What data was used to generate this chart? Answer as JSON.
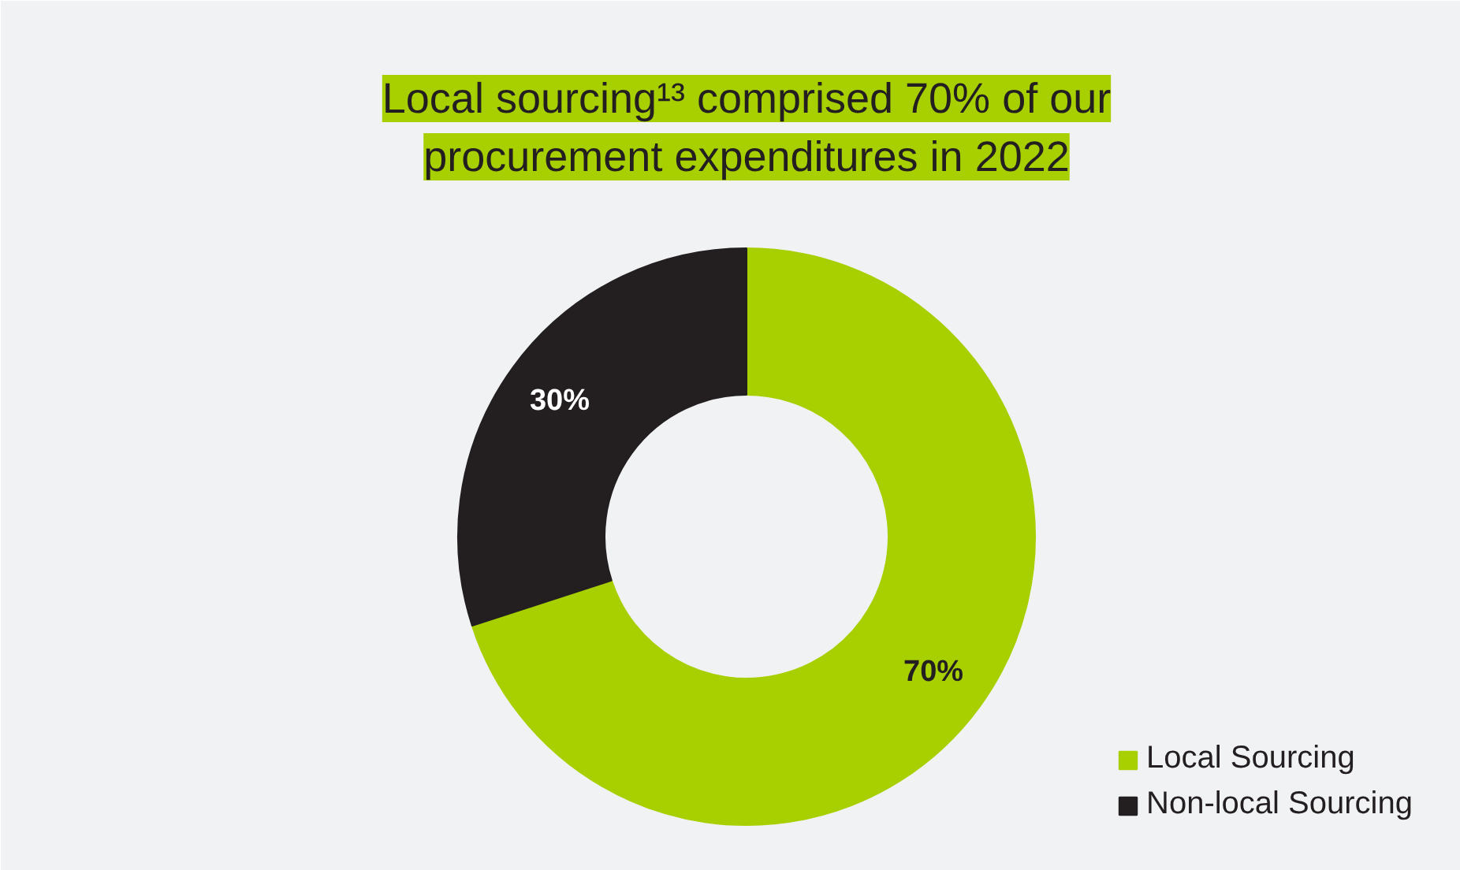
{
  "chart_data": {
    "type": "donut",
    "title": "Local sourcing¹³ comprised 70% of our procurement expenditures in 2022",
    "categories": [
      "Local Sourcing",
      "Non-local Sourcing"
    ],
    "values": [
      70,
      30
    ],
    "colors": [
      "#a8cf00",
      "#231f20"
    ],
    "value_labels": [
      "70%",
      "30%"
    ],
    "legend": "bottom right"
  }
}
